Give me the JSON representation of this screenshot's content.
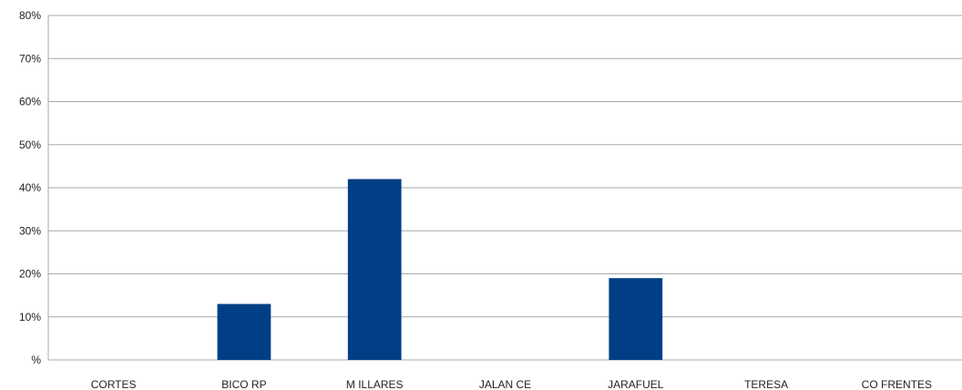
{
  "chart_data": {
    "type": "bar",
    "categories": [
      "CORTES",
      "BICORP",
      "MILLARES",
      "JALANCE",
      "JARAFUEL",
      "TERESA",
      "COFRENTES"
    ],
    "category_labels": [
      "CORTES",
      "BICO RP",
      "M ILLARES",
      "JALAN CE",
      "JARAFUEL",
      "TERESA",
      "CO FRENTES"
    ],
    "values": [
      0,
      13,
      42,
      0,
      19,
      0,
      0
    ],
    "ylim": [
      0,
      80
    ],
    "yticks": [
      0,
      10,
      20,
      30,
      40,
      50,
      60,
      70,
      80
    ],
    "ytick_labels": [
      "%",
      "10%",
      "20%",
      "30%",
      "40%",
      "50%",
      "60%",
      "70%",
      "80%"
    ],
    "title": "",
    "xlabel": "",
    "ylabel": "",
    "grid": true,
    "bar_color": "#003f85",
    "grid_color": "#a9a9a9"
  }
}
